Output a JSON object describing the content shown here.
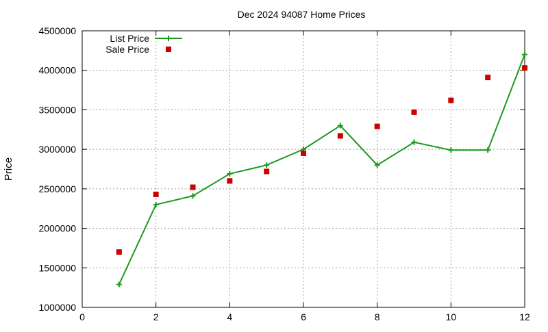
{
  "chart_data": {
    "type": "line",
    "title": "Dec 2024 94087 Home Prices",
    "xlabel": "",
    "ylabel": "Price",
    "xlim": [
      0,
      12
    ],
    "ylim": [
      1000000,
      4500000
    ],
    "x_ticks": [
      0,
      2,
      4,
      6,
      8,
      10,
      12
    ],
    "y_ticks": [
      1000000,
      1500000,
      2000000,
      2500000,
      3000000,
      3500000,
      4000000,
      4500000
    ],
    "grid": true,
    "legend_position": "top-left",
    "series": [
      {
        "name": "List Price",
        "style": "line-with-plus-markers",
        "color": "#1a9a1a",
        "points": [
          [
            1,
            1290000
          ],
          [
            2,
            2300000
          ],
          [
            3,
            2410000
          ],
          [
            4,
            2690000
          ],
          [
            5,
            2800000
          ],
          [
            6,
            3000000
          ],
          [
            7,
            3300000
          ],
          [
            8,
            2800000
          ],
          [
            9,
            3090000
          ],
          [
            10,
            2990000
          ],
          [
            11,
            2990000
          ],
          [
            12,
            4200000
          ]
        ]
      },
      {
        "name": "Sale Price",
        "style": "square-markers",
        "color": "#cc0000",
        "points": [
          [
            1,
            1700000
          ],
          [
            2,
            2430000
          ],
          [
            3,
            2520000
          ],
          [
            4,
            2600000
          ],
          [
            5,
            2720000
          ],
          [
            6,
            2950000
          ],
          [
            7,
            3170000
          ],
          [
            8,
            3290000
          ],
          [
            9,
            3470000
          ],
          [
            10,
            3620000
          ],
          [
            11,
            3910000
          ],
          [
            12,
            4030000
          ]
        ]
      }
    ]
  }
}
